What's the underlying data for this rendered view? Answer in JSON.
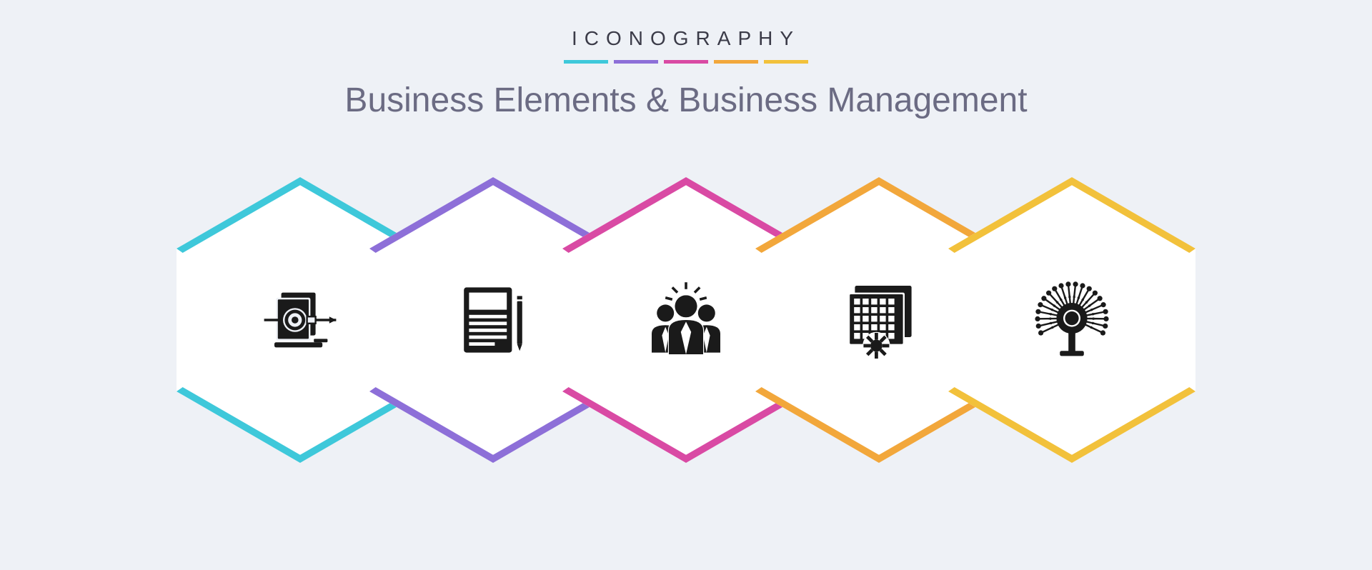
{
  "header": {
    "brand": "ICONOGRAPHY",
    "title": "Business Elements & Business Management"
  },
  "colors": {
    "background": "#eef1f6",
    "brand_text": "#3b3b48",
    "title_text": "#6b6b83",
    "hexagon_fill": "#ffffff",
    "icon_fill": "#1a1a1a",
    "accents": [
      "#3ec8da",
      "#8d6fd8",
      "#d94aa4",
      "#f2a73b",
      "#f2c13b"
    ]
  },
  "icons": [
    {
      "name": "algorithm-target-icon",
      "accent_index": 0,
      "type": "glyph"
    },
    {
      "name": "brand-notebook-icon",
      "accent_index": 1,
      "type": "glyph"
    },
    {
      "name": "business-team-icon",
      "accent_index": 2,
      "type": "glyph"
    },
    {
      "name": "iteration-grid-icon",
      "accent_index": 3,
      "type": "glyph"
    },
    {
      "name": "data-network-icon",
      "accent_index": 4,
      "type": "glyph"
    }
  ]
}
